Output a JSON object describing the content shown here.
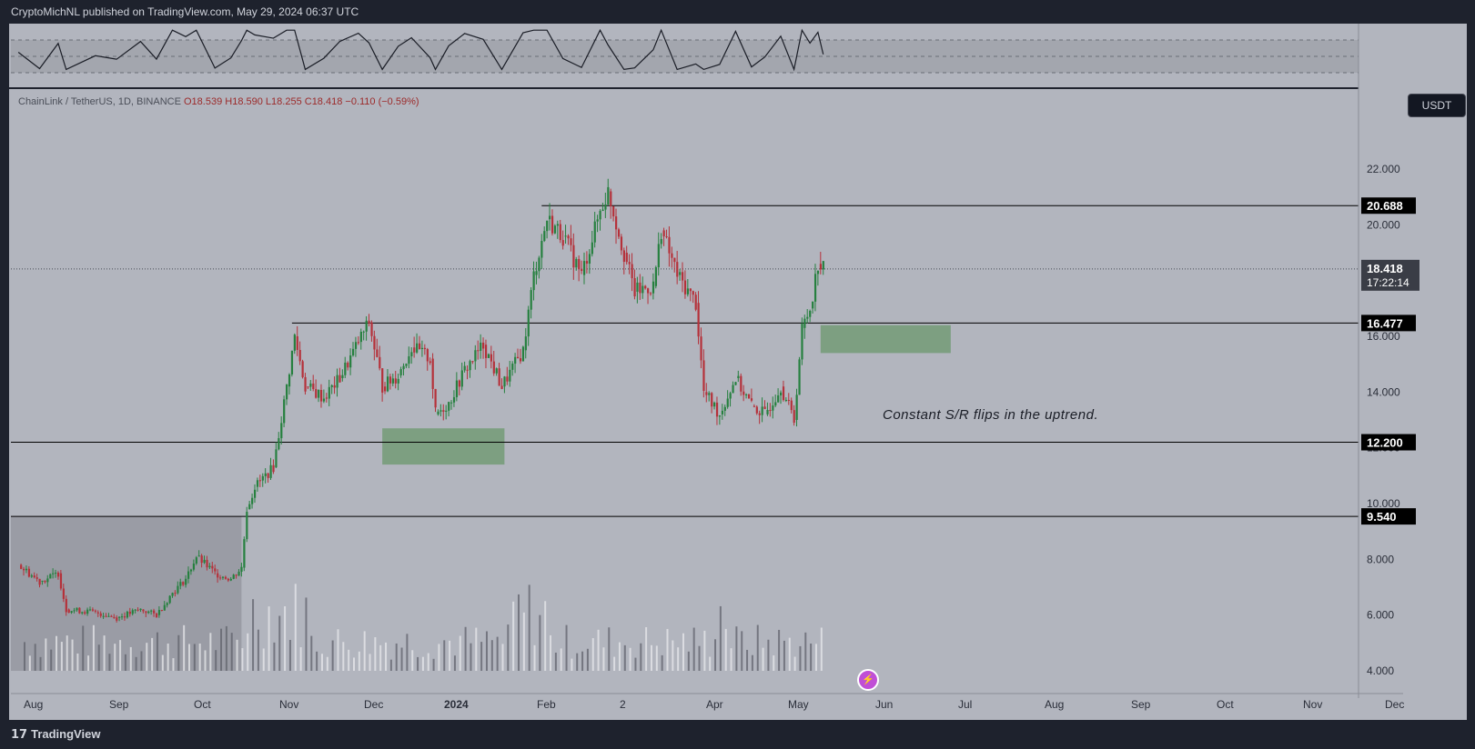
{
  "header": {
    "publish_line": "CryptoMichNL published on TradingView.com, May 29, 2024 06:37 UTC"
  },
  "legend": {
    "symbol": "ChainLink / TetherUS, 1D, BINANCE",
    "open": "O18.539",
    "high": "H18.590",
    "low": "L18.255",
    "close": "C18.418",
    "change": "−0.110 (−0.59%)"
  },
  "currency_label": "USDT",
  "annotation": "Constant S/R flips in the uptrend.",
  "footer": {
    "brand": "TradingView"
  },
  "icons": [
    "tradingview-logo-icon",
    "flash-icon"
  ],
  "colors": {
    "bull": "#26803f",
    "bear": "#b5313a",
    "zone": "#6f9a72",
    "panel": "#b2b5be",
    "dark": "#1e222d"
  },
  "chart_data": {
    "type": "candlestick",
    "title": "",
    "x_ticks": [
      "Aug",
      "Sep",
      "Oct",
      "Nov",
      "Dec",
      "2024",
      "Feb",
      "2",
      "Apr",
      "May",
      "Jun",
      "Jul",
      "Aug",
      "Sep",
      "Oct",
      "Nov",
      "Dec"
    ],
    "y_ticks": [
      "4.000",
      "6.000",
      "8.000",
      "10.000",
      "12.000",
      "14.000",
      "16.000",
      "18.000",
      "20.000",
      "22.000"
    ],
    "ylim": [
      4,
      24
    ],
    "price_levels": [
      {
        "label": "20.688",
        "value": 20.688
      },
      {
        "label": "16.477",
        "value": 16.477
      },
      {
        "label": "12.200",
        "value": 12.2
      },
      {
        "label": "9.540",
        "value": 9.54
      }
    ],
    "last_price": {
      "label": "18.418",
      "value": 18.418,
      "countdown": "17:22:14"
    },
    "zones": [
      {
        "from_date": "2023-12-14",
        "to_date": "2024-01-29",
        "low": 11.4,
        "high": 12.7
      },
      {
        "from_date": "2024-05-27",
        "to_date": "2024-07-15",
        "low": 15.4,
        "high": 16.4
      }
    ],
    "price_path": [
      {
        "date": "2023-07-30",
        "close": 7.8
      },
      {
        "date": "2023-08-07",
        "close": 7.2
      },
      {
        "date": "2023-08-14",
        "close": 7.5
      },
      {
        "date": "2023-08-17",
        "close": 6.2
      },
      {
        "date": "2023-08-28",
        "close": 6.1
      },
      {
        "date": "2023-09-05",
        "close": 5.9
      },
      {
        "date": "2023-09-14",
        "close": 6.2
      },
      {
        "date": "2023-09-20",
        "close": 6.0
      },
      {
        "date": "2023-09-26",
        "close": 6.8
      },
      {
        "date": "2023-10-01",
        "close": 7.3
      },
      {
        "date": "2023-10-05",
        "close": 8.1
      },
      {
        "date": "2023-10-12",
        "close": 7.5
      },
      {
        "date": "2023-10-18",
        "close": 7.3
      },
      {
        "date": "2023-10-22",
        "close": 7.7
      },
      {
        "date": "2023-10-24",
        "close": 9.8
      },
      {
        "date": "2023-10-27",
        "close": 10.6
      },
      {
        "date": "2023-11-03",
        "close": 11.3
      },
      {
        "date": "2023-11-08",
        "close": 14.2
      },
      {
        "date": "2023-11-11",
        "close": 16.0
      },
      {
        "date": "2023-11-15",
        "close": 14.2
      },
      {
        "date": "2023-11-22",
        "close": 13.8
      },
      {
        "date": "2023-11-28",
        "close": 14.5
      },
      {
        "date": "2023-12-05",
        "close": 15.8
      },
      {
        "date": "2023-12-09",
        "close": 16.5
      },
      {
        "date": "2023-12-14",
        "close": 14.2
      },
      {
        "date": "2023-12-20",
        "close": 14.6
      },
      {
        "date": "2023-12-25",
        "close": 15.6
      },
      {
        "date": "2024-01-01",
        "close": 15.2
      },
      {
        "date": "2024-01-03",
        "close": 13.2
      },
      {
        "date": "2024-01-08",
        "close": 13.6
      },
      {
        "date": "2024-01-14",
        "close": 14.8
      },
      {
        "date": "2024-01-21",
        "close": 15.7
      },
      {
        "date": "2024-01-28",
        "close": 14.2
      },
      {
        "date": "2024-02-05",
        "close": 15.5
      },
      {
        "date": "2024-02-09",
        "close": 18.2
      },
      {
        "date": "2024-02-14",
        "close": 20.2
      },
      {
        "date": "2024-02-20",
        "close": 19.6
      },
      {
        "date": "2024-02-27",
        "close": 18.2
      },
      {
        "date": "2024-03-05",
        "close": 20.5
      },
      {
        "date": "2024-03-08",
        "close": 21.2
      },
      {
        "date": "2024-03-14",
        "close": 19.0
      },
      {
        "date": "2024-03-18",
        "close": 17.6
      },
      {
        "date": "2024-03-25",
        "close": 17.8
      },
      {
        "date": "2024-03-28",
        "close": 19.8
      },
      {
        "date": "2024-04-03",
        "close": 18.2
      },
      {
        "date": "2024-04-10",
        "close": 17.2
      },
      {
        "date": "2024-04-13",
        "close": 14.0
      },
      {
        "date": "2024-04-19",
        "close": 13.2
      },
      {
        "date": "2024-04-25",
        "close": 14.5
      },
      {
        "date": "2024-05-01",
        "close": 13.5
      },
      {
        "date": "2024-05-06",
        "close": 13.2
      },
      {
        "date": "2024-05-12",
        "close": 14.2
      },
      {
        "date": "2024-05-17",
        "close": 13.0
      },
      {
        "date": "2024-05-20",
        "close": 16.3
      },
      {
        "date": "2024-05-23",
        "close": 17.0
      },
      {
        "date": "2024-05-26",
        "close": 18.6
      },
      {
        "date": "2024-05-28",
        "close": 18.418
      }
    ]
  }
}
